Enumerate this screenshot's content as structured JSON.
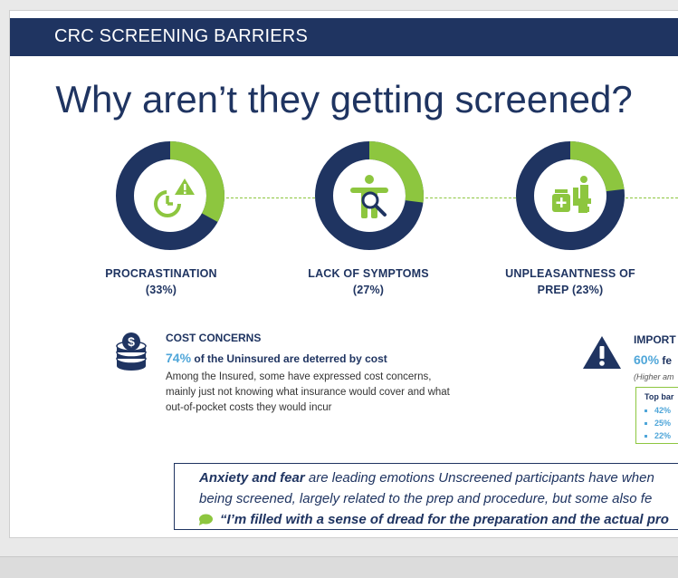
{
  "header": {
    "title": "CRC SCREENING BARRIERS"
  },
  "headline": "Why aren’t they getting screened?",
  "barriers": [
    {
      "label_line1": "PROCRASTINATION",
      "label_line2": "(33%)",
      "value": 33,
      "icon": "clock-warning-icon"
    },
    {
      "label_line1": "LACK OF SYMPTOMS",
      "label_line2": "(27%)",
      "value": 27,
      "icon": "body-magnifier-icon"
    },
    {
      "label_line1": "UNPLEASANTNESS OF",
      "label_line2": "PREP (23%)",
      "value": 23,
      "icon": "medicine-toilet-icon"
    }
  ],
  "colors": {
    "navy": "#1f3461",
    "green": "#8dc63f",
    "blue": "#4fa6d9"
  },
  "cost": {
    "icon": "coin-stack-icon",
    "title": "COST CONCERNS",
    "pct": "74%",
    "line": " of the Uninsured are deterred by cost",
    "body": "Among the Insured, some have expressed cost concerns, mainly just not knowing what insurance would cover and what out-of-pocket costs they would incur"
  },
  "importance": {
    "icon": "warning-icon",
    "title": "IMPORT",
    "pct": "60%",
    "line": " fe",
    "note": "(Higher am",
    "box_title": "Top bar",
    "items": [
      "42%",
      "25%",
      "22%"
    ]
  },
  "quote": {
    "line1_bold": "Anxiety and fear",
    "line1_rest": " are leading emotions Unscreened participants have when",
    "line2": "being screened, largely related to the prep and procedure, but some also fe",
    "line3": "“I’m filled with a sense of dread for the preparation and the actual pro",
    "icon": "speech-bubble-icon"
  }
}
